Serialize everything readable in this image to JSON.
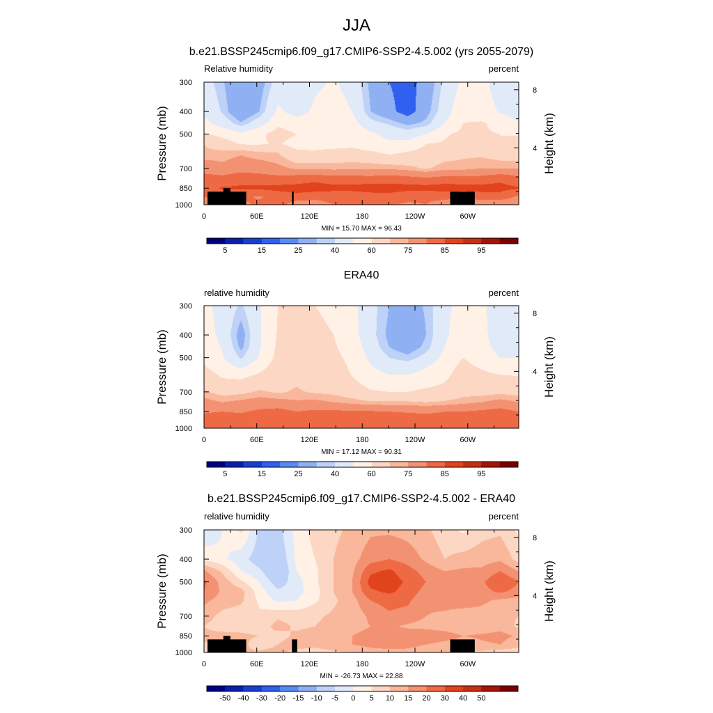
{
  "figure": {
    "season_title": "JJA"
  },
  "chart_data": [
    {
      "type": "heatmap",
      "title": "b.e21.BSSP245cmip6.f09_g17.CMIP6-SSP2-4.5.002 (yrs 2055-2079)",
      "left_label": "Relative humidity",
      "right_label": "percent",
      "ylabel": "Pressure (mb)",
      "ylabel_right": "Height (km)",
      "x_ticks": [
        "0",
        "60E",
        "120E",
        "180",
        "120W",
        "60W"
      ],
      "x_tick_values": [
        0,
        60,
        120,
        180,
        240,
        300
      ],
      "xlim": [
        0,
        358
      ],
      "y_ticks": [
        "300",
        "400",
        "500",
        "700",
        "850",
        "1000"
      ],
      "y_tick_values": [
        300,
        400,
        500,
        700,
        850,
        1000
      ],
      "ylim": [
        1000,
        300
      ],
      "y_scale": "log",
      "height_ticks": [
        "8",
        "4"
      ],
      "height_tick_values": [
        8,
        4
      ],
      "stats_text": "MIN =  15.70  MAX =  96.43",
      "min": 15.7,
      "max": 96.43,
      "colorbar_ticks": [
        "5",
        "15",
        "25",
        "40",
        "60",
        "75",
        "85",
        "95"
      ],
      "colorbar_tick_slots": [
        1,
        3,
        5,
        7,
        9,
        11,
        13,
        15
      ],
      "levels": [
        2.5,
        10,
        20,
        30,
        35,
        45,
        55,
        65,
        70,
        80,
        90
      ],
      "colorbar_colors": [
        "#00007f",
        "#0a1fa8",
        "#1a3fd0",
        "#2f60ee",
        "#5a8bf2",
        "#8fb0f3",
        "#bed2f7",
        "#e1eaf9",
        "#fff1e6",
        "#fcd7c3",
        "#f9b89b",
        "#f39272",
        "#ee6a45",
        "#e1431d",
        "#c52f12",
        "#a31508",
        "#7a0000"
      ],
      "series": [
        {
          "name": "",
          "values": [
            [
              72,
              75,
              78,
              82,
              87,
              72,
              75,
              80,
              80,
              80,
              80,
              79,
              80,
              77,
              72,
              72,
              70,
              73
            ],
            [
              80,
              84,
              82,
              79,
              84,
              88,
              83,
              84,
              84,
              85,
              87,
              82,
              81,
              82,
              82,
              85,
              86,
              78
            ],
            [
              86,
              91,
              91,
              92,
              93,
              93,
              95,
              93,
              93,
              95,
              94,
              94,
              94,
              95,
              94,
              94,
              93,
              91
            ],
            [
              85,
              84,
              88,
              85,
              84,
              86,
              87,
              85,
              85,
              84,
              86,
              84,
              82,
              84,
              84,
              84,
              88,
              83
            ],
            [
              75,
              72,
              75,
              75,
              72,
              69,
              69,
              68,
              69,
              69,
              69,
              67,
              64,
              68,
              68,
              70,
              70,
              70
            ],
            [
              66,
              67,
              69,
              66,
              65,
              57,
              57,
              59,
              59,
              57,
              53,
              56,
              58,
              61,
              63,
              63,
              60,
              59
            ],
            [
              65,
              60,
              54,
              54,
              56,
              51,
              50,
              50,
              52,
              47,
              47,
              48,
              55,
              56,
              56,
              55,
              55,
              59
            ],
            [
              56,
              52,
              48,
              53,
              59,
              55,
              55,
              54,
              54,
              47,
              42,
              40,
              45,
              54,
              57,
              56,
              55,
              54
            ],
            [
              48,
              41,
              31,
              41,
              53,
              50,
              49,
              53,
              49,
              38,
              34,
              28,
              32,
              45,
              55,
              56,
              52,
              46
            ],
            [
              43,
              34,
              21,
              30,
              47,
              41,
              47,
              50,
              45,
              30,
              23,
              15,
              27,
              40,
              53,
              50,
              44,
              39
            ],
            [
              39,
              31,
              20,
              26,
              39,
              35,
              43,
              46,
              41,
              28,
              20,
              16,
              24,
              37,
              47,
              48,
              40,
              37
            ]
          ]
        }
      ],
      "pressures": [
        1000,
        925,
        850,
        775,
        700,
        600,
        550,
        500,
        450,
        400,
        300
      ],
      "terrain": [
        [
          4,
          30,
          880
        ],
        [
          22,
          30,
          850
        ],
        [
          30,
          48,
          880
        ],
        [
          100,
          102,
          880
        ],
        [
          280,
          308,
          880
        ]
      ]
    },
    {
      "type": "heatmap",
      "title": "ERA40",
      "left_label": "relative humidity",
      "right_label": "percent",
      "ylabel": "Pressure (mb)",
      "ylabel_right": "Height (km)",
      "x_ticks": [
        "0",
        "60E",
        "120E",
        "180",
        "120W",
        "60W"
      ],
      "x_tick_values": [
        0,
        60,
        120,
        180,
        240,
        300
      ],
      "xlim": [
        0,
        358
      ],
      "y_ticks": [
        "300",
        "400",
        "500",
        "700",
        "850",
        "1000"
      ],
      "y_tick_values": [
        300,
        400,
        500,
        700,
        850,
        1000
      ],
      "ylim": [
        1000,
        300
      ],
      "y_scale": "log",
      "height_ticks": [
        "8",
        "4"
      ],
      "height_tick_values": [
        8,
        4
      ],
      "stats_text": "MIN =  17.12  MAX =  90.31",
      "min": 17.12,
      "max": 90.31,
      "colorbar_ticks": [
        "5",
        "15",
        "25",
        "40",
        "60",
        "75",
        "85",
        "95"
      ],
      "colorbar_tick_slots": [
        1,
        3,
        5,
        7,
        9,
        11,
        13,
        15
      ],
      "levels": [
        2.5,
        10,
        20,
        30,
        35,
        45,
        55,
        65,
        70,
        80,
        90
      ],
      "colorbar_colors": [
        "#00007f",
        "#0a1fa8",
        "#1a3fd0",
        "#2f60ee",
        "#5a8bf2",
        "#8fb0f3",
        "#bed2f7",
        "#e1eaf9",
        "#fff1e6",
        "#fcd7c3",
        "#f9b89b",
        "#f39272",
        "#ee6a45",
        "#e1431d",
        "#c52f12",
        "#a31508",
        "#7a0000"
      ],
      "series": [
        {
          "name": "",
          "values": [
            [
              80,
              82,
              83,
              84,
              84,
              83,
              84,
              86,
              86,
              86,
              86,
              85,
              86,
              84,
              80,
              81,
              82,
              82
            ],
            [
              84,
              86,
              85,
              87,
              88,
              87,
              87,
              88,
              88,
              89,
              89,
              87,
              86,
              86,
              86,
              88,
              90,
              85
            ],
            [
              79,
              80,
              79,
              82,
              84,
              80,
              82,
              82,
              81,
              81,
              80,
              79,
              78,
              80,
              80,
              82,
              84,
              80
            ],
            [
              73,
              70,
              72,
              74,
              73,
              71,
              72,
              70,
              68,
              66,
              66,
              66,
              65,
              66,
              68,
              70,
              73,
              70
            ],
            [
              66,
              62,
              63,
              66,
              64,
              66,
              64,
              63,
              60,
              56,
              55,
              55,
              57,
              58,
              62,
              62,
              63,
              62
            ],
            [
              60,
              54,
              53,
              57,
              60,
              63,
              59,
              58,
              55,
              49,
              46,
              46,
              49,
              53,
              60,
              58,
              56,
              55
            ],
            [
              56,
              50,
              44,
              52,
              60,
              62,
              58,
              58,
              54,
              46,
              41,
              40,
              45,
              51,
              58,
              54,
              50,
              48
            ],
            [
              54,
              46,
              34,
              46,
              58,
              60,
              57,
              57,
              53,
              43,
              35,
              32,
              38,
              48,
              55,
              50,
              45,
              45
            ],
            [
              52,
              44,
              28,
              44,
              57,
              58,
              57,
              56,
              51,
              40,
              30,
              25,
              32,
              45,
              54,
              48,
              42,
              43
            ],
            [
              50,
              42,
              26,
              44,
              56,
              57,
              56,
              55,
              49,
              38,
              28,
              21,
              30,
              43,
              52,
              47,
              41,
              42
            ],
            [
              48,
              41,
              34,
              44,
              55,
              56,
              55,
              54,
              48,
              38,
              30,
              26,
              31,
              42,
              50,
              46,
              42,
              43
            ]
          ]
        }
      ],
      "pressures": [
        1000,
        925,
        850,
        775,
        700,
        600,
        550,
        500,
        450,
        400,
        300
      ],
      "terrain": []
    },
    {
      "type": "heatmap",
      "title": "b.e21.BSSP245cmip6.f09_g17.CMIP6-SSP2-4.5.002 - ERA40",
      "left_label": "relative humidity",
      "right_label": "percent",
      "ylabel": "Pressure (mb)",
      "ylabel_right": "Height (km)",
      "x_ticks": [
        "0",
        "60E",
        "120E",
        "180",
        "120W",
        "60W"
      ],
      "x_tick_values": [
        0,
        60,
        120,
        180,
        240,
        300
      ],
      "xlim": [
        0,
        358
      ],
      "y_ticks": [
        "300",
        "400",
        "500",
        "700",
        "850",
        "1000"
      ],
      "y_tick_values": [
        300,
        400,
        500,
        700,
        850,
        1000
      ],
      "ylim": [
        1000,
        300
      ],
      "y_scale": "log",
      "height_ticks": [
        "8",
        "4"
      ],
      "height_tick_values": [
        8,
        4
      ],
      "stats_text": "MIN = -26.73  MAX =  22.88",
      "min": -26.73,
      "max": 22.88,
      "colorbar_ticks": [
        "-50",
        "-40",
        "-30",
        "-20",
        "-15",
        "-10",
        "-5",
        "0",
        "5",
        "10",
        "15",
        "20",
        "30",
        "40",
        "50"
      ],
      "colorbar_tick_slots": [
        1,
        2,
        3,
        4,
        5,
        6,
        7,
        8,
        9,
        10,
        11,
        12,
        13,
        14,
        15
      ],
      "levels": [
        -15,
        -10,
        -5,
        0,
        5,
        10,
        15,
        20
      ],
      "colorbar_colors": [
        "#00007f",
        "#0a1fa8",
        "#1a3fd0",
        "#2f60ee",
        "#5a8bf2",
        "#8fb0f3",
        "#bed2f7",
        "#e1eaf9",
        "#fff1e6",
        "#fcd7c3",
        "#f9b89b",
        "#f39272",
        "#ee6a45",
        "#e1431d",
        "#c52f12",
        "#a31508",
        "#7a0000"
      ],
      "series": [
        {
          "name": "",
          "values": [
            [
              -2,
              -1,
              0,
              1,
              2,
              -2,
              -3,
              -1,
              0,
              2,
              3,
              4,
              3,
              2,
              0,
              -1,
              -3,
              -2
            ],
            [
              -1,
              1,
              2,
              -3,
              0,
              3,
              2,
              4,
              5,
              7,
              8,
              6,
              5,
              3,
              2,
              4,
              5,
              1
            ],
            [
              2,
              3,
              1,
              0,
              -2,
              1,
              3,
              4,
              5,
              7,
              8,
              9,
              10,
              8,
              5,
              6,
              7,
              4
            ],
            [
              0,
              -4,
              -2,
              -3,
              2,
              -1,
              0,
              2,
              3,
              5,
              6,
              4,
              3,
              2,
              0,
              1,
              3,
              -1
            ],
            [
              3,
              -2,
              -3,
              -4,
              -1,
              -2,
              -1,
              1,
              2,
              6,
              9,
              8,
              5,
              4,
              2,
              3,
              1,
              0
            ],
            [
              6,
              3,
              1,
              -6,
              -11,
              -10,
              -6,
              -1,
              3,
              10,
              12,
              11,
              6,
              7,
              8,
              6,
              4,
              3
            ],
            [
              10,
              4,
              2,
              -8,
              -14,
              -12,
              -7,
              0,
              5,
              14,
              16,
              13,
              8,
              7,
              10,
              8,
              11,
              8
            ],
            [
              11,
              3,
              -4,
              -10,
              -18,
              -12,
              -6,
              0,
              5,
              17,
              18,
              14,
              10,
              8,
              8,
              9,
              15,
              10
            ],
            [
              6,
              -1,
              -10,
              -14,
              -22,
              -10,
              -6,
              0,
              4,
              14,
              16,
              12,
              8,
              5,
              6,
              6,
              10,
              5
            ],
            [
              -6,
              -9,
              -13,
              -18,
              -20,
              -9,
              -5,
              0,
              3,
              8,
              10,
              8,
              4,
              0,
              2,
              3,
              4,
              -2
            ],
            [
              -15,
              -10,
              -4,
              -16,
              -17,
              -8,
              -3,
              -1,
              1,
              4,
              4,
              3,
              1,
              -3,
              -6,
              -2,
              -1,
              -6
            ]
          ]
        }
      ],
      "pressures": [
        1000,
        925,
        850,
        775,
        700,
        600,
        550,
        500,
        450,
        400,
        300
      ],
      "terrain": [
        [
          4,
          30,
          880
        ],
        [
          22,
          30,
          850
        ],
        [
          30,
          48,
          880
        ],
        [
          100,
          106,
          880
        ],
        [
          280,
          308,
          880
        ]
      ]
    }
  ]
}
